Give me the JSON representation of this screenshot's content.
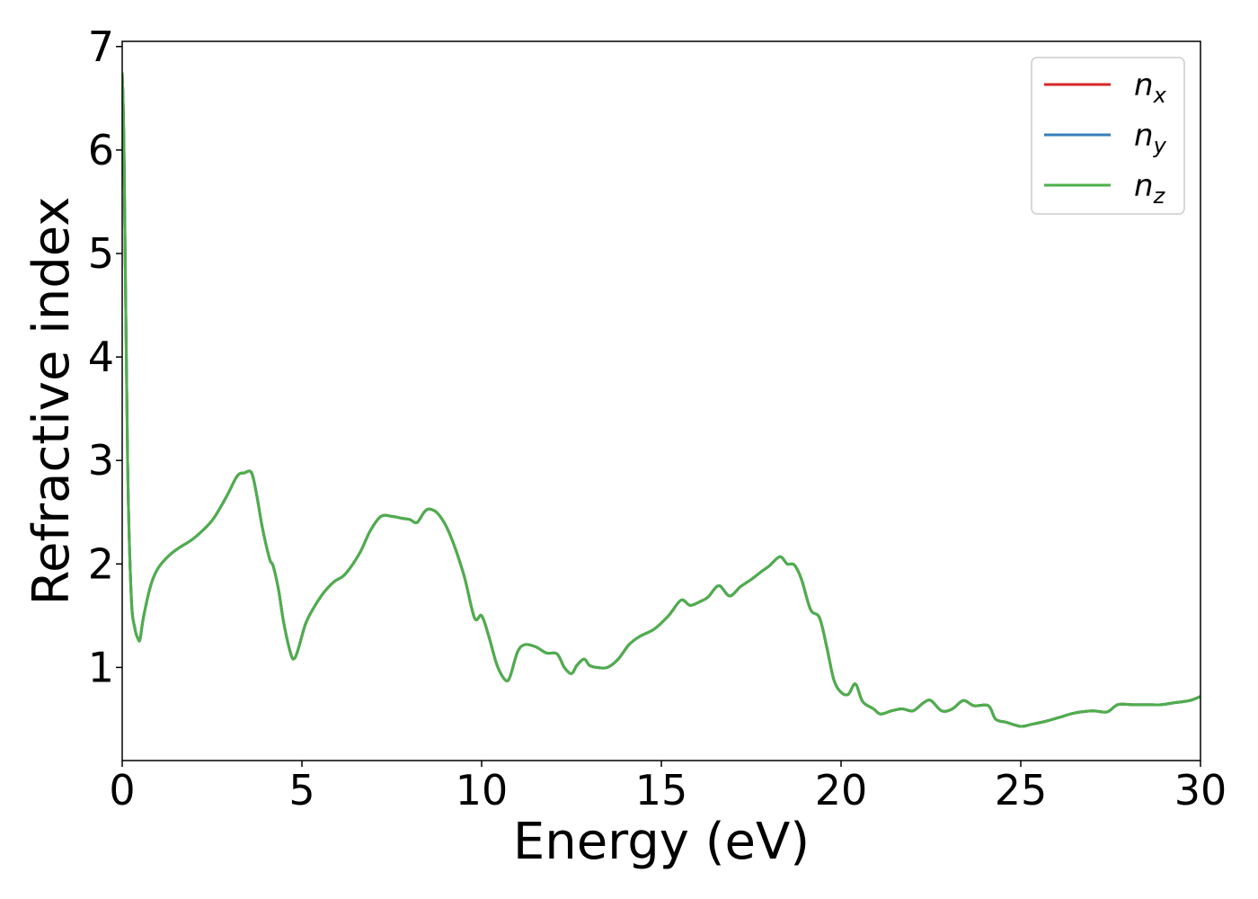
{
  "chart_data": {
    "type": "line",
    "title": "",
    "xlabel": "Energy (eV)",
    "ylabel": "Refractive index",
    "xlim": [
      0,
      30
    ],
    "ylim": [
      0.1,
      7.05
    ],
    "xticks": [
      0,
      5,
      10,
      15,
      20,
      25,
      30
    ],
    "yticks": [
      1,
      2,
      3,
      4,
      5,
      6,
      7
    ],
    "grid": false,
    "legend_position": "top-right",
    "series": [
      {
        "name": "n",
        "subscript": "x",
        "color": "#d62728"
      },
      {
        "name": "n",
        "subscript": "y",
        "color": "#377eb8"
      },
      {
        "name": "n",
        "subscript": "z",
        "color": "#4daf4a"
      }
    ],
    "x": [
      0.0,
      0.05,
      0.15,
      0.25,
      0.35,
      0.45,
      0.5,
      0.6,
      0.8,
      1.0,
      1.3,
      1.6,
      2.0,
      2.5,
      2.9,
      3.2,
      3.4,
      3.6,
      3.75,
      3.9,
      4.1,
      4.2,
      4.35,
      4.5,
      4.7,
      4.8,
      4.9,
      5.1,
      5.3,
      5.6,
      5.9,
      6.2,
      6.6,
      6.9,
      7.2,
      7.5,
      7.8,
      8.0,
      8.2,
      8.4,
      8.55,
      8.8,
      9.1,
      9.5,
      9.8,
      10.0,
      10.2,
      10.4,
      10.55,
      10.7,
      10.8,
      11.0,
      11.2,
      11.5,
      11.8,
      12.1,
      12.3,
      12.5,
      12.65,
      12.85,
      13.0,
      13.2,
      13.5,
      13.8,
      14.1,
      14.4,
      14.8,
      15.2,
      15.55,
      15.8,
      16.1,
      16.3,
      16.6,
      16.9,
      17.2,
      17.5,
      17.8,
      18.0,
      18.3,
      18.5,
      18.7,
      18.9,
      19.15,
      19.4,
      19.6,
      19.8,
      20.0,
      20.2,
      20.4,
      20.6,
      20.9,
      21.1,
      21.4,
      21.7,
      22.0,
      22.3,
      22.5,
      22.8,
      23.1,
      23.4,
      23.7,
      24.1,
      24.3,
      24.6,
      25.0,
      25.3,
      25.7,
      26.1,
      26.5,
      27.0,
      27.4,
      27.7,
      28.1,
      28.5,
      28.9,
      29.3,
      29.7,
      30.0
    ],
    "y": [
      6.75,
      6.0,
      3.0,
      1.7,
      1.38,
      1.27,
      1.28,
      1.5,
      1.8,
      1.96,
      2.08,
      2.16,
      2.25,
      2.42,
      2.65,
      2.85,
      2.88,
      2.88,
      2.65,
      2.35,
      2.05,
      1.98,
      1.75,
      1.42,
      1.12,
      1.09,
      1.18,
      1.42,
      1.56,
      1.72,
      1.83,
      1.9,
      2.1,
      2.32,
      2.46,
      2.46,
      2.44,
      2.43,
      2.4,
      2.5,
      2.53,
      2.48,
      2.3,
      1.9,
      1.48,
      1.5,
      1.3,
      1.05,
      0.93,
      0.87,
      0.92,
      1.15,
      1.22,
      1.2,
      1.14,
      1.13,
      1.0,
      0.94,
      1.02,
      1.08,
      1.02,
      1.0,
      1.0,
      1.08,
      1.22,
      1.3,
      1.37,
      1.5,
      1.65,
      1.6,
      1.64,
      1.68,
      1.79,
      1.69,
      1.78,
      1.85,
      1.93,
      1.98,
      2.07,
      2.0,
      1.99,
      1.85,
      1.56,
      1.48,
      1.2,
      0.88,
      0.76,
      0.74,
      0.84,
      0.67,
      0.6,
      0.55,
      0.58,
      0.6,
      0.58,
      0.66,
      0.68,
      0.58,
      0.6,
      0.68,
      0.63,
      0.63,
      0.5,
      0.47,
      0.43,
      0.45,
      0.48,
      0.52,
      0.56,
      0.58,
      0.57,
      0.64,
      0.64,
      0.64,
      0.64,
      0.66,
      0.68,
      0.72
    ]
  }
}
